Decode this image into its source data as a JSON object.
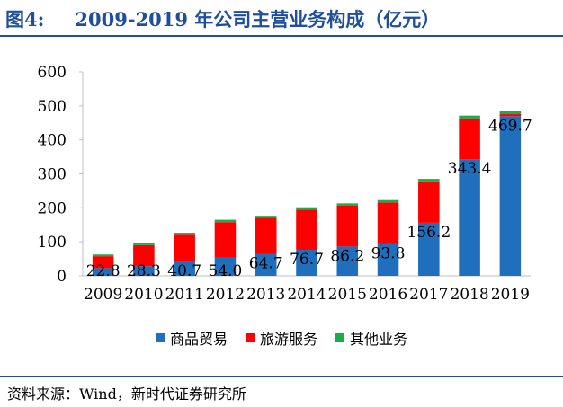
{
  "header": {
    "label": "图4:",
    "title": "2009-2019 年公司主营业务构成（亿元）"
  },
  "footer": {
    "source": "资料来源：Wind，新时代证券研究所"
  },
  "chart_data": {
    "type": "bar",
    "stacked": true,
    "categories": [
      "2009",
      "2010",
      "2011",
      "2012",
      "2013",
      "2014",
      "2015",
      "2016",
      "2017",
      "2018",
      "2019"
    ],
    "series": [
      {
        "name": "商品贸易",
        "color": "#1f6fbd",
        "values": [
          22.8,
          28.3,
          40.7,
          54.0,
          64.7,
          76.7,
          86.2,
          93.8,
          156.2,
          343.4,
          469.7
        ]
      },
      {
        "name": "旅游服务",
        "color": "#ff0000",
        "values": [
          35,
          62,
          80,
          104,
          106,
          118,
          120,
          122,
          119,
          120,
          6
        ]
      },
      {
        "name": "其他业务",
        "color": "#1aae4b",
        "values": [
          5,
          6,
          6,
          7,
          6,
          7,
          7,
          7,
          10,
          8,
          8
        ]
      }
    ],
    "data_labels": [
      "22.8",
      "28.3",
      "40.7",
      "54.0",
      "64.7",
      "76.7",
      "86.2",
      "93.8",
      "156.2",
      "343.4",
      "469.7"
    ],
    "yticks": [
      "0",
      "100",
      "200",
      "300",
      "400",
      "500",
      "600"
    ],
    "ylim": [
      0,
      600
    ],
    "legend_position": "bottom"
  }
}
